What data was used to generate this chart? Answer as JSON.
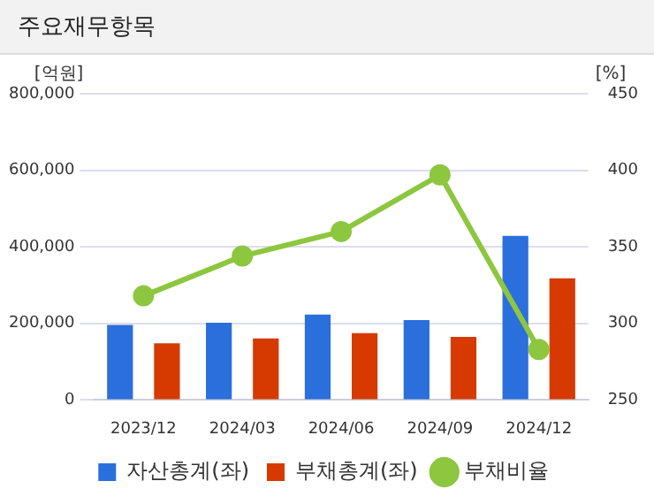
{
  "chart_data": {
    "type": "bar",
    "title": "주요재무항목",
    "ylabel": "[억원]",
    "y2label": "[%]",
    "categories": [
      "2023/12",
      "2024/03",
      "2024/06",
      "2024/09",
      "2024/12"
    ],
    "series": [
      {
        "name": "자산총계(좌)",
        "color": "#2a6fdb",
        "values": [
          196000,
          202000,
          223000,
          209000,
          429000
        ]
      },
      {
        "name": "부채총계(좌)",
        "color": "#d63a00",
        "values": [
          148000,
          161000,
          175000,
          165000,
          318000
        ]
      },
      {
        "name": "부채비율",
        "type": "line",
        "axis": "y2",
        "color": "#8dc63f",
        "marker": "circle",
        "values": [
          318,
          344,
          360,
          397,
          283
        ]
      }
    ],
    "ylim": [
      0,
      800000
    ],
    "yticks": [
      0,
      {
        "value": 200000,
        "label": "200,000"
      },
      {
        "value": 400000,
        "label": "400,000"
      },
      {
        "value": 600000,
        "label": "600,000"
      },
      {
        "value": 800000,
        "label": "800,000"
      }
    ],
    "y2lim": [
      250,
      450
    ],
    "y2ticks": [
      250,
      300,
      350,
      400,
      450
    ],
    "grid": "y",
    "legend": "bottom"
  }
}
